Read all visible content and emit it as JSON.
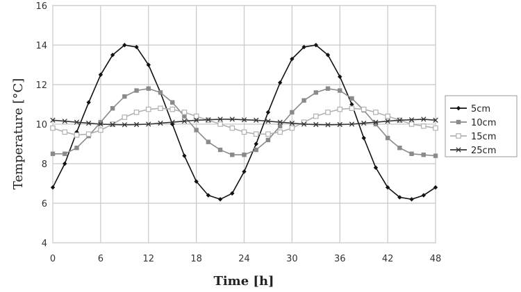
{
  "chart_data": {
    "type": "line",
    "title": "",
    "xlabel": "Time [h]",
    "ylabel": "Temperature [°C]",
    "xlim": [
      0,
      48
    ],
    "ylim": [
      4,
      16
    ],
    "xticks": [
      0,
      6,
      12,
      18,
      24,
      30,
      36,
      42,
      48
    ],
    "yticks": [
      4,
      6,
      8,
      10,
      12,
      14,
      16
    ],
    "grid": true,
    "legend_position": "right",
    "x": [
      0,
      1.5,
      3,
      4.5,
      6,
      7.5,
      9,
      10.5,
      12,
      13.5,
      15,
      16.5,
      18,
      19.5,
      21,
      22.5,
      24,
      25.5,
      27,
      28.5,
      30,
      31.5,
      33,
      34.5,
      36,
      37.5,
      39,
      40.5,
      42,
      43.5,
      45,
      46.5,
      48
    ],
    "series": [
      {
        "name": "5cm",
        "color": "#111111",
        "marker": "diamond",
        "values": [
          6.8,
          8.0,
          9.6,
          11.1,
          12.5,
          13.5,
          14.0,
          13.9,
          13.0,
          11.6,
          10.0,
          8.4,
          7.1,
          6.4,
          6.2,
          6.5,
          7.6,
          9.0,
          10.6,
          12.1,
          13.3,
          13.9,
          14.0,
          13.5,
          12.4,
          11.0,
          9.3,
          7.8,
          6.8,
          6.3,
          6.2,
          6.4,
          6.8
        ]
      },
      {
        "name": "10cm",
        "color": "#8a8a8a",
        "marker": "square",
        "values": [
          8.5,
          8.5,
          8.8,
          9.4,
          10.1,
          10.8,
          11.4,
          11.7,
          11.8,
          11.6,
          11.1,
          10.4,
          9.7,
          9.1,
          8.7,
          8.45,
          8.45,
          8.7,
          9.2,
          9.9,
          10.6,
          11.2,
          11.6,
          11.8,
          11.7,
          11.3,
          10.7,
          10.0,
          9.3,
          8.8,
          8.5,
          8.45,
          8.4
        ]
      },
      {
        "name": "15cm",
        "color": "#b0b0b0",
        "marker": "open-square",
        "values": [
          9.8,
          9.6,
          9.45,
          9.5,
          9.7,
          10.0,
          10.35,
          10.6,
          10.75,
          10.8,
          10.75,
          10.6,
          10.4,
          10.2,
          10.0,
          9.8,
          9.6,
          9.5,
          9.5,
          9.6,
          9.8,
          10.1,
          10.4,
          10.6,
          10.75,
          10.8,
          10.75,
          10.6,
          10.4,
          10.2,
          10.0,
          9.9,
          9.8
        ]
      },
      {
        "name": "25cm",
        "color": "#333333",
        "marker": "cross",
        "values": [
          10.2,
          10.15,
          10.1,
          10.05,
          10.0,
          9.98,
          9.97,
          9.98,
          10.0,
          10.05,
          10.1,
          10.15,
          10.2,
          10.22,
          10.25,
          10.25,
          10.22,
          10.2,
          10.15,
          10.1,
          10.05,
          10.0,
          9.98,
          9.97,
          9.98,
          10.0,
          10.05,
          10.1,
          10.15,
          10.2,
          10.22,
          10.25,
          10.2
        ]
      }
    ]
  }
}
